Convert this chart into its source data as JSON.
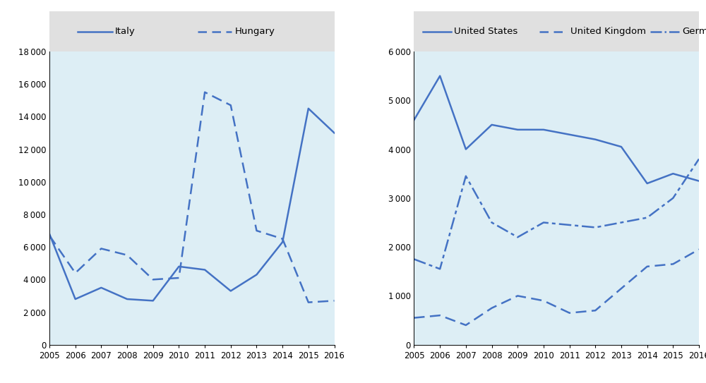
{
  "years": [
    2005,
    2006,
    2007,
    2008,
    2009,
    2010,
    2011,
    2012,
    2013,
    2014,
    2015,
    2016
  ],
  "italy": [
    6800,
    2800,
    3500,
    2800,
    2700,
    4800,
    4600,
    3300,
    4300,
    6300,
    14500,
    13000
  ],
  "hungary": [
    6700,
    4400,
    5900,
    5500,
    4000,
    4100,
    15500,
    14700,
    7000,
    6500,
    2600,
    2700
  ],
  "us": [
    4600,
    5500,
    4000,
    4500,
    4400,
    4400,
    4300,
    4200,
    4050,
    3300,
    3500,
    3350
  ],
  "uk": [
    550,
    600,
    400,
    750,
    1000,
    900,
    650,
    700,
    1150,
    1600,
    1650,
    1950
  ],
  "germany": [
    1750,
    1550,
    3450,
    2500,
    2200,
    2500,
    2450,
    2400,
    2500,
    2600,
    3000,
    3800
  ],
  "line_color": "#4472c4",
  "bg_color": "#ddeef5",
  "legend_bg": "#e0e0e0",
  "outer_bg": "#ffffff",
  "left_ylim": [
    0,
    18000
  ],
  "right_ylim": [
    0,
    6000
  ],
  "left_yticks": [
    0,
    2000,
    4000,
    6000,
    8000,
    10000,
    12000,
    14000,
    16000,
    18000
  ],
  "right_yticks": [
    0,
    1000,
    2000,
    3000,
    4000,
    5000,
    6000
  ]
}
